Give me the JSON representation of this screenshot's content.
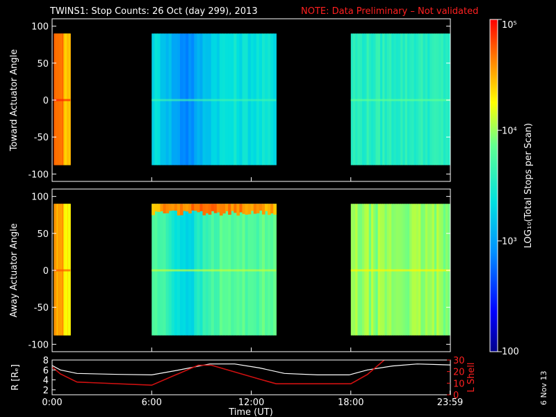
{
  "header": {
    "title": "TWINS1: Stop Counts: 26 Oct (day 299), 2013",
    "note": "NOTE: Data Preliminary – Not validated"
  },
  "date_stamp": "6 Nov 13",
  "colors": {
    "background": "#000000",
    "axis": "#ffffff",
    "note": "#ff2020",
    "r_line": "#ffffff",
    "lshell_line": "#d01010"
  },
  "chart_data": [
    {
      "type": "heatmap",
      "name": "toward",
      "ylabel": "Toward Actuator Angle",
      "ylim": [
        -110,
        110
      ],
      "yticks": [
        100,
        50,
        0,
        -50,
        -100
      ],
      "xlim": [
        0,
        24
      ],
      "angle_range": [
        -88,
        90
      ],
      "segments": [
        {
          "start": 0.1,
          "end": 1.1,
          "level": 0.87,
          "profile": "edge_high"
        },
        {
          "start": 6.0,
          "end": 13.5,
          "level": 0.46,
          "profile": "blue_dip"
        },
        {
          "start": 18.0,
          "end": 23.98,
          "level": 0.52,
          "profile": "flat"
        }
      ]
    },
    {
      "type": "heatmap",
      "name": "away",
      "ylabel": "Away Actuator Angle",
      "ylim": [
        -110,
        110
      ],
      "yticks": [
        100,
        50,
        0,
        -50,
        -100
      ],
      "xlim": [
        0,
        24
      ],
      "angle_range": [
        -88,
        90
      ],
      "segments": [
        {
          "start": 0.1,
          "end": 1.1,
          "level": 0.82,
          "profile": "edge_high"
        },
        {
          "start": 6.0,
          "end": 13.5,
          "level": 0.6,
          "profile": "top_band"
        },
        {
          "start": 18.0,
          "end": 23.98,
          "level": 0.66,
          "profile": "flat"
        }
      ]
    },
    {
      "type": "line",
      "name": "orbit",
      "ylabel": "R [Rₑ]",
      "ylabel2": "L Shell",
      "xlabel": "Time (UT)",
      "ylim": [
        1,
        8
      ],
      "yticks": [
        8,
        6,
        4,
        2
      ],
      "y2lim": [
        0,
        30
      ],
      "y2ticks": [
        30,
        20,
        10,
        0
      ],
      "xticks": [
        {
          "value": 0,
          "label": "0:00"
        },
        {
          "value": 6,
          "label": "6:00"
        },
        {
          "value": 12,
          "label": "12:00"
        },
        {
          "value": 18,
          "label": "18:00"
        },
        {
          "value": 23.98,
          "label": "23:59"
        }
      ],
      "series": [
        {
          "name": "R",
          "axis": "left",
          "x": [
            0,
            0.5,
            1.5,
            4,
            6,
            7.5,
            9.5,
            11,
            12.5,
            14,
            16,
            17.9,
            19,
            20.5,
            22,
            24
          ],
          "y": [
            6.9,
            6.0,
            5.3,
            5.1,
            5.0,
            5.9,
            7.2,
            7.2,
            6.4,
            5.3,
            5.0,
            5.0,
            6.0,
            6.8,
            7.2,
            7.0
          ]
        },
        {
          "name": "L Shell",
          "axis": "right",
          "x": [
            0,
            0.5,
            1.5,
            6,
            8.8,
            9.6,
            12.5,
            13.5,
            16,
            18,
            19,
            20.1
          ],
          "y": [
            24,
            18,
            11,
            8.3,
            25.5,
            25.5,
            13.5,
            9.5,
            9.5,
            9.5,
            17.5,
            31
          ]
        }
      ]
    }
  ],
  "colorbar": {
    "label": "LOG₁₀(Total Stops per Scan)",
    "range": [
      100,
      100000
    ],
    "ticks": [
      {
        "value": 100000,
        "label": "10⁵"
      },
      {
        "value": 10000,
        "label": "10⁴"
      },
      {
        "value": 1000,
        "label": "10³"
      },
      {
        "value": 100,
        "label": "100"
      }
    ]
  }
}
